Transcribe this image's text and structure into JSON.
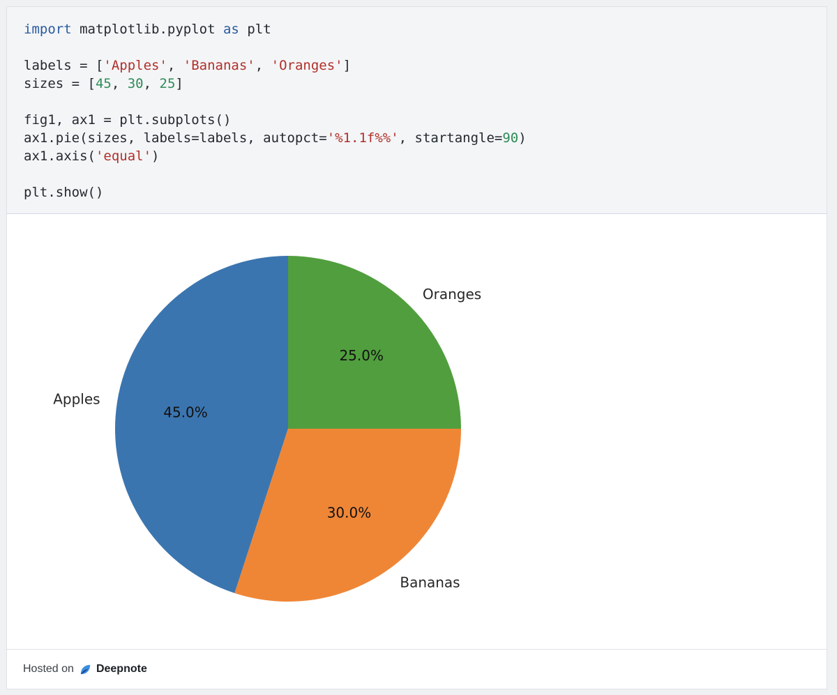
{
  "code": {
    "lines": [
      [
        {
          "t": "import",
          "c": "kw"
        },
        {
          "t": " matplotlib.pyplot ",
          "c": ""
        },
        {
          "t": "as",
          "c": "kw"
        },
        {
          "t": " plt",
          "c": ""
        }
      ],
      [],
      [
        {
          "t": "labels = [",
          "c": ""
        },
        {
          "t": "'Apples'",
          "c": "str"
        },
        {
          "t": ", ",
          "c": ""
        },
        {
          "t": "'Bananas'",
          "c": "str"
        },
        {
          "t": ", ",
          "c": ""
        },
        {
          "t": "'Oranges'",
          "c": "str"
        },
        {
          "t": "]",
          "c": ""
        }
      ],
      [
        {
          "t": "sizes = [",
          "c": ""
        },
        {
          "t": "45",
          "c": "num"
        },
        {
          "t": ", ",
          "c": ""
        },
        {
          "t": "30",
          "c": "num"
        },
        {
          "t": ", ",
          "c": ""
        },
        {
          "t": "25",
          "c": "num"
        },
        {
          "t": "]",
          "c": ""
        }
      ],
      [],
      [
        {
          "t": "fig1, ax1 = plt.subplots()",
          "c": ""
        }
      ],
      [
        {
          "t": "ax1.pie(sizes, labels=labels, autopct=",
          "c": ""
        },
        {
          "t": "'%1.1f%%'",
          "c": "str"
        },
        {
          "t": ", startangle=",
          "c": ""
        },
        {
          "t": "90",
          "c": "num"
        },
        {
          "t": ")",
          "c": ""
        }
      ],
      [
        {
          "t": "ax1.axis(",
          "c": ""
        },
        {
          "t": "'equal'",
          "c": "str"
        },
        {
          "t": ")",
          "c": ""
        }
      ],
      [],
      [
        {
          "t": "plt.show()",
          "c": ""
        }
      ]
    ]
  },
  "chart_data": {
    "type": "pie",
    "title": "",
    "categories": [
      "Apples",
      "Bananas",
      "Oranges"
    ],
    "values": [
      45,
      30,
      25
    ],
    "percent_labels": [
      "45.0%",
      "30.0%",
      "25.0%"
    ],
    "colors": [
      "#3b75af",
      "#ef8636",
      "#519e3e"
    ],
    "start_angle_deg": 90,
    "direction": "counterclockwise"
  },
  "footer": {
    "hosted_label": "Hosted on",
    "brand": "Deepnote",
    "icon": "deepnote-logo-icon"
  }
}
